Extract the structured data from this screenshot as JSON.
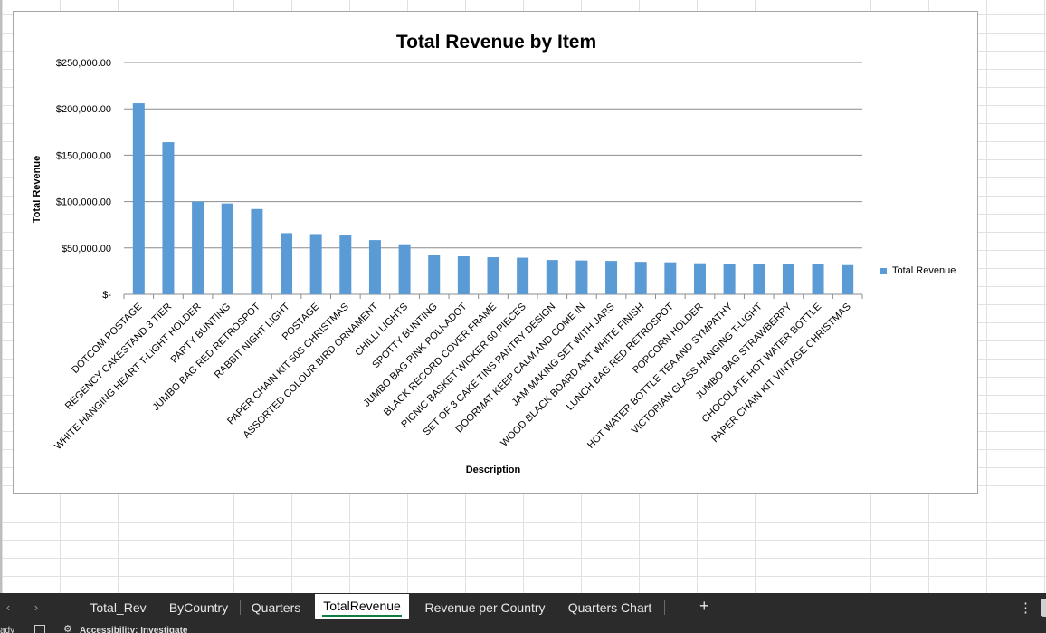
{
  "chart_data": {
    "type": "bar",
    "title": "Total Revenue by Item",
    "xlabel": "Description",
    "ylabel": "Total Revenue",
    "ylim": [
      0,
      250000
    ],
    "yticks": [
      0,
      50000,
      100000,
      150000,
      200000,
      250000
    ],
    "ytick_labels": [
      "$-",
      "$50,000.00",
      "$100,000.00",
      "$150,000.00",
      "$200,000.00",
      "$250,000.00"
    ],
    "grid": true,
    "legend_position": "right",
    "bar_color": "#5b9bd5",
    "categories": [
      "DOTCOM POSTAGE",
      "REGENCY CAKESTAND 3 TIER",
      "WHITE HANGING HEART T-LIGHT HOLDER",
      "PARTY BUNTING",
      "JUMBO BAG RED RETROSPOT",
      "RABBIT NIGHT LIGHT",
      "POSTAGE",
      "PAPER CHAIN KIT 50S CHRISTMAS",
      "ASSORTED COLOUR BIRD ORNAMENT",
      "CHILLI LIGHTS",
      "SPOTTY BUNTING",
      "JUMBO BAG PINK POLKADOT",
      "BLACK RECORD COVER FRAME",
      "PICNIC BASKET WICKER 60 PIECES",
      "SET OF 3 CAKE TINS PANTRY DESIGN",
      "DOORMAT KEEP CALM AND COME IN",
      "JAM MAKING SET WITH JARS",
      "WOOD BLACK BOARD ANT WHITE FINISH",
      "LUNCH BAG RED RETROSPOT",
      "POPCORN HOLDER",
      "HOT WATER BOTTLE TEA AND SYMPATHY",
      "VICTORIAN GLASS HANGING T-LIGHT",
      "JUMBO BAG STRAWBERRY",
      "CHOCOLATE HOT WATER BOTTLE",
      "PAPER CHAIN KIT VINTAGE CHRISTMAS"
    ],
    "series": [
      {
        "name": "Total Revenue",
        "values": [
          206000,
          164000,
          100000,
          98000,
          92000,
          66000,
          65000,
          63500,
          58500,
          54000,
          42000,
          41000,
          40000,
          39500,
          37000,
          36500,
          36000,
          35000,
          34500,
          33500,
          32500,
          32500,
          32500,
          32500,
          31500
        ]
      }
    ]
  },
  "sheet_tabs": {
    "nav_prev": "‹",
    "nav_next": "›",
    "tabs": [
      "Total_Rev",
      "ByCountry",
      "Quarters",
      "TotalRevenue",
      "Revenue per Country",
      "Quarters Chart"
    ],
    "active_index": 3,
    "add_label": "+",
    "more_label": "⋮"
  },
  "status_bar": {
    "ready_text": "ady",
    "accessibility_text": "Accessibility: Investigate"
  },
  "colors": {
    "accent": "#107c41",
    "tabbar_bg": "#2b2b2b",
    "series": "#5b9bd5"
  }
}
